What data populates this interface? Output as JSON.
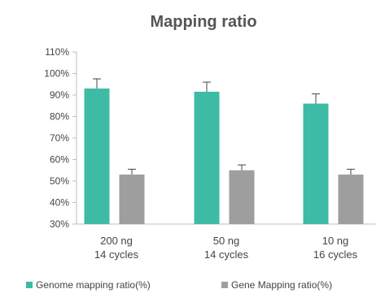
{
  "chart_data": {
    "type": "bar",
    "title": "Mapping ratio",
    "categories": [
      [
        "200 ng",
        "14 cycles"
      ],
      [
        "50 ng",
        "14 cycles"
      ],
      [
        "10 ng",
        "16 cycles"
      ]
    ],
    "series": [
      {
        "name": "Genome mapping ratio(%)",
        "color": "#3dbba5",
        "values": [
          93,
          91.5,
          86
        ],
        "errors": [
          4.5,
          4.5,
          4.5
        ]
      },
      {
        "name": "Gene Mapping ratio(%)",
        "color": "#9e9e9e",
        "values": [
          53,
          55,
          53
        ],
        "errors": [
          2.5,
          2.5,
          2.5
        ]
      }
    ],
    "ylim": [
      30,
      110
    ],
    "yticks": [
      "30%",
      "40%",
      "50%",
      "60%",
      "70%",
      "80%",
      "90%",
      "100%",
      "110%"
    ],
    "ytick_values": [
      30,
      40,
      50,
      60,
      70,
      80,
      90,
      100,
      110
    ],
    "grid": false,
    "legend": "bottom"
  }
}
